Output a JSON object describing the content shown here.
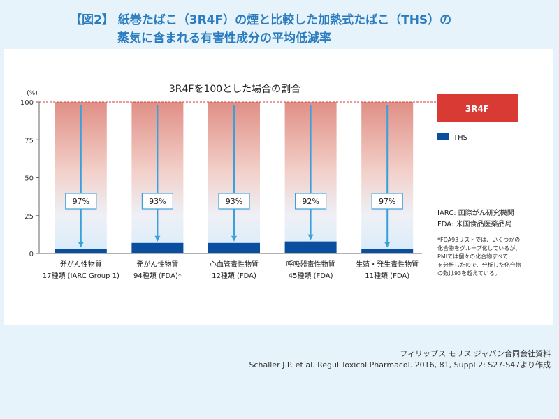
{
  "title_line1": "【図2】 紙巻たばこ（3R4F）の煙と比較した加熱式たばこ（THS）の",
  "title_line2": "蒸気に含まれる有害性成分の平均低減率",
  "chart_data": {
    "type": "bar",
    "title": "3R4Fを100とした場合の割合",
    "ylabel": "(%)",
    "ylim": [
      0,
      100
    ],
    "yticks": [
      0,
      25,
      50,
      75,
      100
    ],
    "categories": [
      {
        "line1": "発がん性物質",
        "line2": "17種類 (IARC Group 1)"
      },
      {
        "line1": "発がん性物質",
        "line2": "94種類 (FDA)*"
      },
      {
        "line1": "心血管毒性物質",
        "line2": "12種類 (FDA)"
      },
      {
        "line1": "呼吸器毒性物質",
        "line2": "45種類 (FDA)"
      },
      {
        "line1": "生殖・発生毒性物質",
        "line2": "11種類 (FDA)"
      }
    ],
    "series": [
      {
        "name": "3R4F",
        "color": "#d93a34",
        "values": [
          100,
          100,
          100,
          100,
          100
        ]
      },
      {
        "name": "THS",
        "color": "#0a4ea0",
        "values": [
          3,
          7,
          7,
          8,
          3
        ]
      }
    ],
    "reduction_labels": [
      "97%",
      "93%",
      "93%",
      "92%",
      "97%"
    ],
    "gridline": "dashed-100"
  },
  "legend": {
    "r4f_label": "3R4F",
    "ths_label": "THS"
  },
  "notes": {
    "iarc": "IARC: 国際がん研究機関",
    "fda": "FDA: 米国食品医薬品局",
    "footnote": [
      "*FDA93リストでは、いくつかの",
      "化合物をグループ化しているが、",
      "PMIでは個々の化合物すべて",
      "を分析したので、分析した化合物",
      "の数は93を超えている。"
    ]
  },
  "source": {
    "line1": "フィリップス モリス ジャパン合同会社資料",
    "line2": "Schaller J.P. et al. Regul Toxicol Pharmacol. 2016, 81, Suppl 2: S27-S47より作成"
  },
  "colors": {
    "title_blue": "#2a7cbf",
    "accent_red": "#d93a34",
    "ths_blue": "#0a4ea0",
    "arrow_blue": "#3aa0dc"
  }
}
